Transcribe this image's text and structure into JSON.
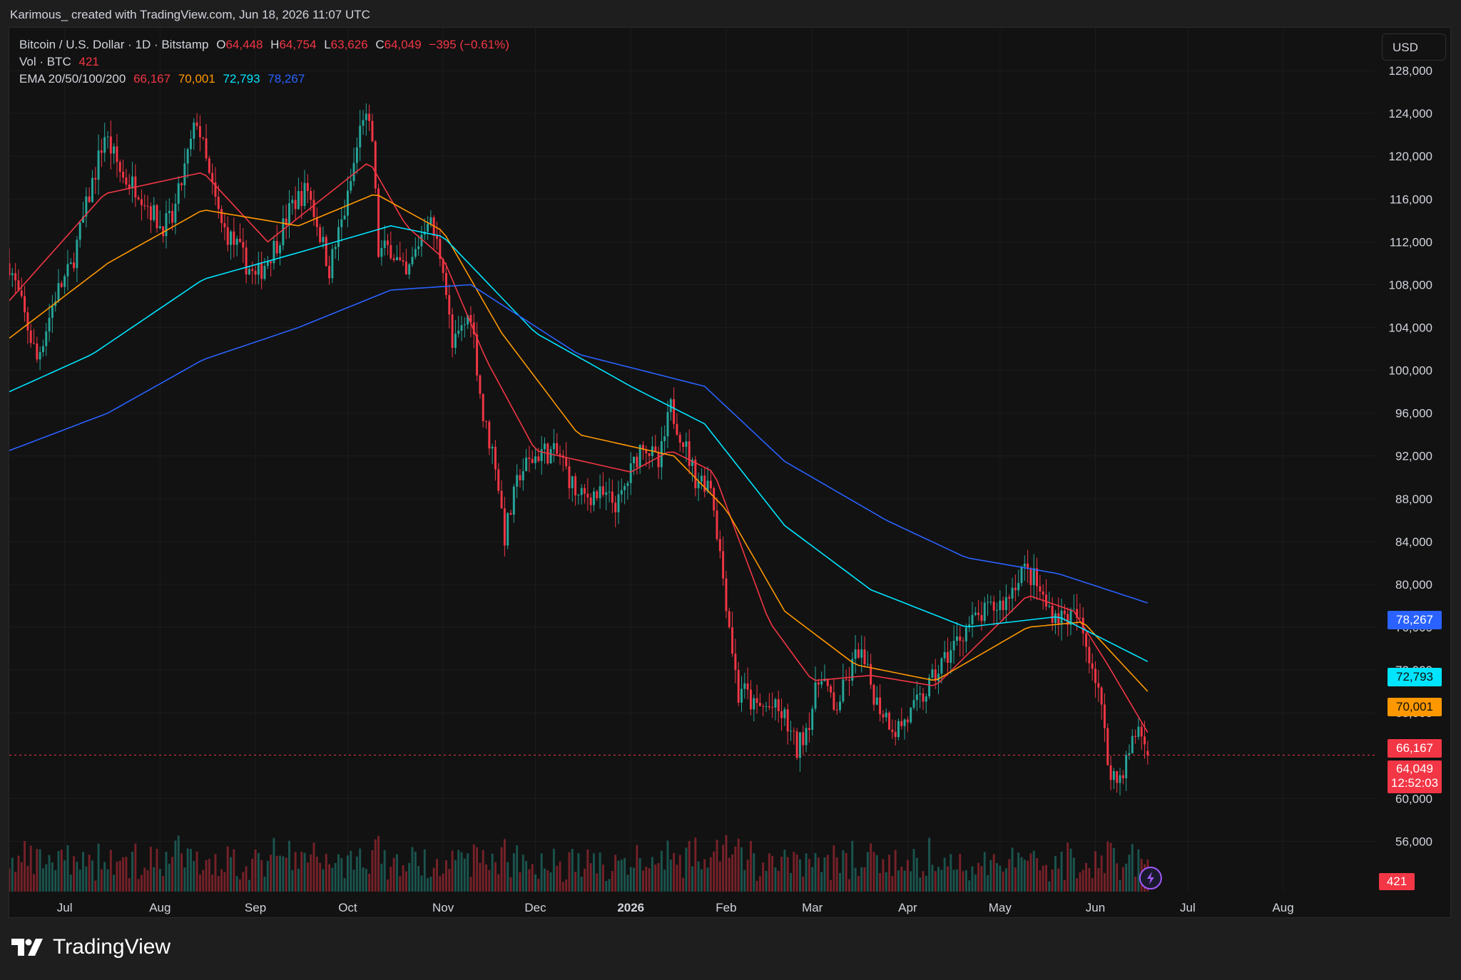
{
  "header": {
    "credit": "Karimous_ created with TradingView.com, Jun 18, 2026 11:07 UTC"
  },
  "legend": {
    "symbol": "Bitcoin / U.S. Dollar · 1D · Bitstamp",
    "open_label": "O",
    "open": "64,448",
    "high_label": "H",
    "high": "64,754",
    "low_label": "L",
    "low": "63,626",
    "close_label": "C",
    "close": "64,049",
    "change": "−395 (−0.61%)",
    "vol_label": "Vol · BTC",
    "vol": "421",
    "ema_label": "EMA 20/50/100/200",
    "ema20": "66,167",
    "ema50": "70,001",
    "ema100": "72,793",
    "ema200": "78,267"
  },
  "currency_button": "USD",
  "brand": {
    "name": "TradingView",
    "icon": "tradingview-logo-icon"
  },
  "badges": {
    "ema200": "78,267",
    "ema100": "72,793",
    "ema50": "70,001",
    "ema20": "66,167",
    "price": "64,049",
    "countdown": "12:52:03",
    "volume": "421"
  },
  "colors": {
    "up": "#26a69a",
    "down": "#f23645",
    "ema20": "#f23645",
    "ema50": "#ff9800",
    "ema100": "#00e5ff",
    "ema200": "#2962ff",
    "background": "#121212"
  },
  "chart_data": {
    "type": "candlestick",
    "title": "Bitcoin / U.S. Dollar · 1D · Bitstamp",
    "y_axis_ticks": [
      128000,
      124000,
      120000,
      116000,
      112000,
      108000,
      104000,
      100000,
      96000,
      92000,
      88000,
      84000,
      80000,
      76000,
      72000,
      68000,
      60000,
      56000
    ],
    "ylim": [
      51300,
      132000
    ],
    "x_axis_labels": [
      "Jul",
      "Aug",
      "Sep",
      "Oct",
      "Nov",
      "Dec",
      "2026",
      "Feb",
      "Mar",
      "Apr",
      "May",
      "Jun",
      "Jul",
      "Aug"
    ],
    "x_range": [
      "2025-06-13",
      "2026-08-31"
    ],
    "last_price": 64049,
    "price_path": [
      [
        "2025-06-13",
        110000
      ],
      [
        "2025-06-22",
        101000
      ],
      [
        "2025-06-28",
        107000
      ],
      [
        "2025-07-03",
        109500
      ],
      [
        "2025-07-10",
        117500
      ],
      [
        "2025-07-14",
        122000
      ],
      [
        "2025-07-20",
        118000
      ],
      [
        "2025-07-25",
        117000
      ],
      [
        "2025-08-01",
        113500
      ],
      [
        "2025-08-05",
        114000
      ],
      [
        "2025-08-10",
        120000
      ],
      [
        "2025-08-13",
        123500
      ],
      [
        "2025-08-17",
        118000
      ],
      [
        "2025-08-21",
        113500
      ],
      [
        "2025-08-26",
        111500
      ],
      [
        "2025-09-01",
        108500
      ],
      [
        "2025-09-08",
        112000
      ],
      [
        "2025-09-13",
        115500
      ],
      [
        "2025-09-18",
        117000
      ],
      [
        "2025-09-25",
        109500
      ],
      [
        "2025-10-01",
        116000
      ],
      [
        "2025-10-06",
        124000
      ],
      [
        "2025-10-09",
        121500
      ],
      [
        "2025-10-11",
        111000
      ],
      [
        "2025-10-15",
        111500
      ],
      [
        "2025-10-20",
        108500
      ],
      [
        "2025-10-27",
        114500
      ],
      [
        "2025-11-01",
        110000
      ],
      [
        "2025-11-04",
        102000
      ],
      [
        "2025-11-10",
        105500
      ],
      [
        "2025-11-14",
        95500
      ],
      [
        "2025-11-18",
        91500
      ],
      [
        "2025-11-21",
        84500
      ],
      [
        "2025-11-26",
        90500
      ],
      [
        "2025-12-03",
        92500
      ],
      [
        "2025-12-09",
        92000
      ],
      [
        "2025-12-15",
        88000
      ],
      [
        "2025-12-20",
        88500
      ],
      [
        "2025-12-28",
        87500
      ],
      [
        "2026-01-05",
        93500
      ],
      [
        "2026-01-10",
        91000
      ],
      [
        "2026-01-14",
        96500
      ],
      [
        "2026-01-18",
        93500
      ],
      [
        "2026-01-22",
        90000
      ],
      [
        "2026-01-27",
        89500
      ],
      [
        "2026-02-01",
        78500
      ],
      [
        "2026-02-05",
        69500
      ],
      [
        "2026-02-06",
        70500
      ],
      [
        "2026-02-10",
        68500
      ],
      [
        "2026-02-16",
        68500
      ],
      [
        "2026-02-20",
        67500
      ],
      [
        "2026-02-24",
        64500
      ],
      [
        "2026-02-28",
        67500
      ],
      [
        "2026-03-04",
        72000
      ],
      [
        "2026-03-08",
        68000
      ],
      [
        "2026-03-13",
        71500
      ],
      [
        "2026-03-16",
        74000
      ],
      [
        "2026-03-22",
        69000
      ],
      [
        "2026-03-28",
        66500
      ],
      [
        "2026-04-01",
        67500
      ],
      [
        "2026-04-06",
        69500
      ],
      [
        "2026-04-13",
        73000
      ],
      [
        "2026-04-20",
        76000
      ],
      [
        "2026-04-27",
        77500
      ],
      [
        "2026-05-03",
        78500
      ],
      [
        "2026-05-08",
        81500
      ],
      [
        "2026-05-12",
        80500
      ],
      [
        "2026-05-16",
        78000
      ],
      [
        "2026-05-20",
        77000
      ],
      [
        "2026-05-26",
        77000
      ],
      [
        "2026-05-30",
        73500
      ],
      [
        "2026-06-02",
        70500
      ],
      [
        "2026-06-05",
        63500
      ],
      [
        "2026-06-08",
        61500
      ],
      [
        "2026-06-11",
        63500
      ],
      [
        "2026-06-15",
        66800
      ],
      [
        "2026-06-18",
        64049
      ]
    ],
    "ema_lines": [
      {
        "name": "EMA 20",
        "points": [
          [
            "2025-06-13",
            106500
          ],
          [
            "2025-07-14",
            116500
          ],
          [
            "2025-08-15",
            118500
          ],
          [
            "2025-09-05",
            112000
          ],
          [
            "2025-10-08",
            119500
          ],
          [
            "2025-10-20",
            113500
          ],
          [
            "2025-11-01",
            110500
          ],
          [
            "2025-11-15",
            101000
          ],
          [
            "2025-12-01",
            92500
          ],
          [
            "2026-01-01",
            90500
          ],
          [
            "2026-01-14",
            92500
          ],
          [
            "2026-01-28",
            90500
          ],
          [
            "2026-02-15",
            76500
          ],
          [
            "2026-03-01",
            71000
          ],
          [
            "2026-03-20",
            71500
          ],
          [
            "2026-04-10",
            70500
          ],
          [
            "2026-05-10",
            79000
          ],
          [
            "2026-05-25",
            77500
          ],
          [
            "2026-06-05",
            72500
          ],
          [
            "2026-06-18",
            66167
          ]
        ]
      },
      {
        "name": "EMA 50",
        "points": [
          [
            "2025-06-13",
            103000
          ],
          [
            "2025-07-15",
            110000
          ],
          [
            "2025-08-15",
            115000
          ],
          [
            "2025-09-15",
            113500
          ],
          [
            "2025-10-10",
            116500
          ],
          [
            "2025-11-01",
            113000
          ],
          [
            "2025-11-20",
            103500
          ],
          [
            "2025-12-15",
            94000
          ],
          [
            "2026-01-15",
            92000
          ],
          [
            "2026-02-01",
            87000
          ],
          [
            "2026-02-20",
            77500
          ],
          [
            "2026-03-15",
            72500
          ],
          [
            "2026-04-10",
            71000
          ],
          [
            "2026-05-10",
            76000
          ],
          [
            "2026-05-28",
            76500
          ],
          [
            "2026-06-18",
            70001
          ]
        ]
      },
      {
        "name": "EMA 100",
        "points": [
          [
            "2025-06-13",
            98000
          ],
          [
            "2025-07-10",
            101500
          ],
          [
            "2025-08-15",
            108500
          ],
          [
            "2025-09-15",
            111000
          ],
          [
            "2025-10-15",
            113500
          ],
          [
            "2025-11-01",
            112500
          ],
          [
            "2025-12-01",
            103500
          ],
          [
            "2026-01-01",
            98500
          ],
          [
            "2026-01-25",
            95000
          ],
          [
            "2026-02-20",
            85500
          ],
          [
            "2026-03-20",
            79500
          ],
          [
            "2026-04-20",
            76000
          ],
          [
            "2026-05-20",
            77000
          ],
          [
            "2026-06-18",
            72793
          ]
        ]
      },
      {
        "name": "EMA 200",
        "points": [
          [
            "2025-06-13",
            92500
          ],
          [
            "2025-07-15",
            96000
          ],
          [
            "2025-08-15",
            101000
          ],
          [
            "2025-09-15",
            104000
          ],
          [
            "2025-10-15",
            107500
          ],
          [
            "2025-11-10",
            108000
          ],
          [
            "2025-12-15",
            101500
          ],
          [
            "2026-01-25",
            98500
          ],
          [
            "2026-02-20",
            91500
          ],
          [
            "2026-03-25",
            86000
          ],
          [
            "2026-04-20",
            82500
          ],
          [
            "2026-05-20",
            81000
          ],
          [
            "2026-06-18",
            78267
          ]
        ]
      }
    ],
    "grid": true
  }
}
